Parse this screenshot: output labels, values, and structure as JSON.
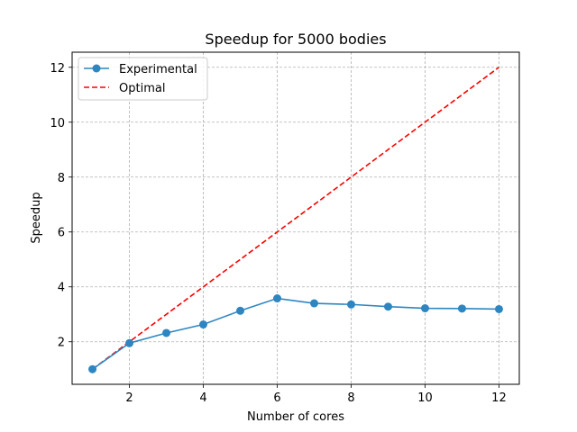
{
  "chart_data": {
    "type": "line",
    "title": "Speedup for 5000 bodies",
    "xlabel": "Number of cores",
    "ylabel": "Speedup",
    "xlim": [
      0.45,
      12.55
    ],
    "ylim": [
      0.45,
      12.55
    ],
    "xticks": [
      2,
      4,
      6,
      8,
      10,
      12
    ],
    "yticks": [
      2,
      4,
      6,
      8,
      10,
      12
    ],
    "grid": true,
    "grid_color": "#b0b0b0",
    "legend_position": "upper-left",
    "series": [
      {
        "name": "Experimental",
        "color": "#2e86c1",
        "line_style": "solid",
        "marker": "circle",
        "x": [
          1,
          2,
          3,
          4,
          5,
          6,
          7,
          8,
          9,
          10,
          11,
          12
        ],
        "y": [
          1.0,
          1.95,
          2.32,
          2.63,
          3.13,
          3.58,
          3.4,
          3.36,
          3.28,
          3.22,
          3.21,
          3.19
        ]
      },
      {
        "name": "Optimal",
        "color": "#ff0000",
        "line_style": "dashed",
        "marker": "none",
        "x": [
          1,
          12
        ],
        "y": [
          1,
          12
        ]
      }
    ]
  }
}
